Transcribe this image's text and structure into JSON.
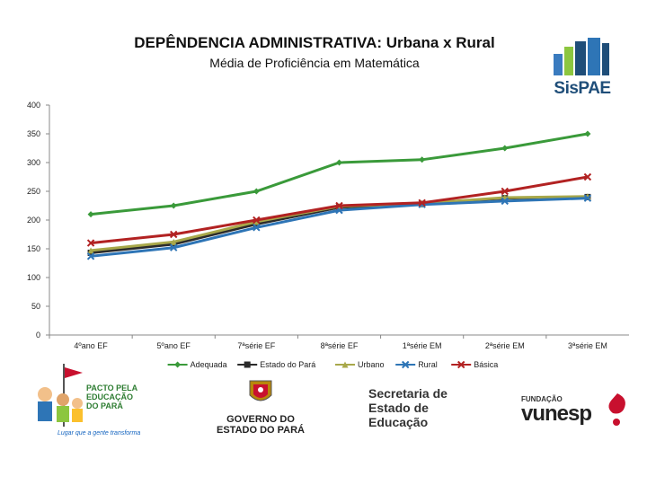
{
  "chart_data": {
    "type": "line",
    "title": "DEPÊNDENCIA ADMINISTRATIVA: Urbana x Rural",
    "subtitle": "Média de Proficiência em Matemática",
    "categories": [
      "4ºano EF",
      "5ºano EF",
      "7ªsérie EF",
      "8ªsérie EF",
      "1ªsérie EM",
      "2ªsérie EM",
      "3ªsérie EM"
    ],
    "ylim": [
      0,
      400
    ],
    "yticks": [
      0,
      50,
      100,
      150,
      200,
      250,
      300,
      350,
      400
    ],
    "grid": false,
    "legend_position": "bottom",
    "series": [
      {
        "name": "Adequada",
        "color": "#3a9a3a",
        "marker": "diamond",
        "values": [
          210,
          225,
          250,
          300,
          305,
          325,
          350
        ]
      },
      {
        "name": "Estado do Pará",
        "color": "#2b2b2b",
        "marker": "square",
        "values": [
          143,
          158,
          193,
          222,
          228,
          238,
          240
        ]
      },
      {
        "name": "Urbano",
        "color": "#a8a84a",
        "marker": "triangle",
        "values": [
          147,
          162,
          197,
          224,
          229,
          239,
          241
        ]
      },
      {
        "name": "Rural",
        "color": "#2e75b6",
        "marker": "x",
        "values": [
          137,
          152,
          187,
          217,
          227,
          233,
          238
        ]
      },
      {
        "name": "Básica",
        "color": "#b22222",
        "marker": "x",
        "values": [
          160,
          175,
          200,
          225,
          230,
          250,
          275
        ]
      }
    ]
  },
  "logos": {
    "sispae": "SisPAE",
    "pacto": [
      "PACTO PELA",
      "EDUCAÇÃO",
      "DO PARÁ"
    ],
    "pacto_slogan": "Lugar que a gente transforma",
    "governo": [
      "GOVERNO DO",
      "ESTADO DO PARÁ"
    ],
    "secretaria": [
      "Secretaria de",
      "Estado de",
      "Educação"
    ],
    "vunesp_small": "FUNDAÇÃO",
    "vunesp_big": "vunesp"
  },
  "colors": {
    "brand_blue": "#1f4e79",
    "brand_green": "#2e7d32",
    "vunesp_red": "#c8102e"
  }
}
